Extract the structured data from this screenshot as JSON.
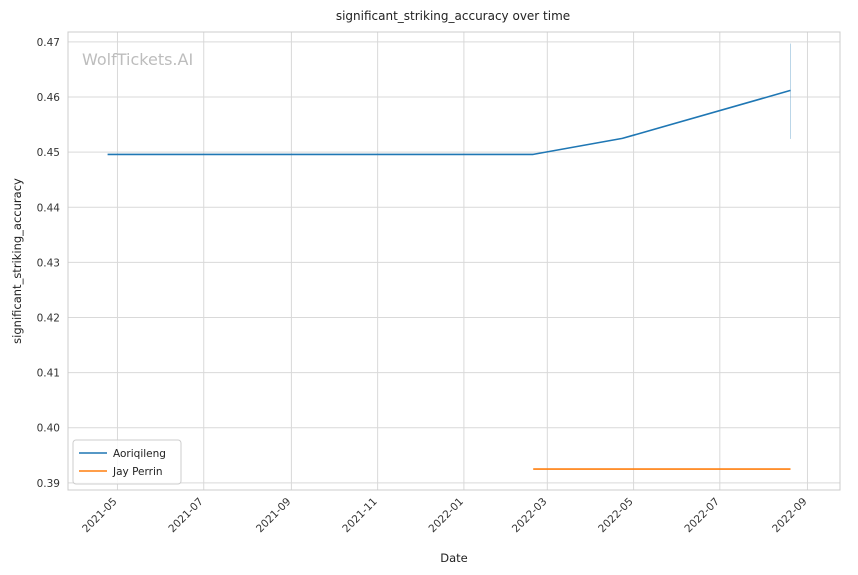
{
  "chart_data": {
    "type": "line",
    "title": "significant_striking_accuracy over time",
    "xlabel": "Date",
    "ylabel": "significant_striking_accuracy",
    "watermark": "WolfTickets.AI",
    "xlim": [
      "2021-03-27",
      "2022-09-24"
    ],
    "ylim": [
      0.3887,
      0.4718
    ],
    "x_ticks": [
      "2021-05",
      "2021-07",
      "2021-09",
      "2021-11",
      "2022-01",
      "2022-03",
      "2022-05",
      "2022-07",
      "2022-09"
    ],
    "y_ticks": [
      0.39,
      0.4,
      0.41,
      0.42,
      0.43,
      0.44,
      0.45,
      0.46,
      0.47
    ],
    "grid": true,
    "legend_position": "lower-left",
    "series": [
      {
        "name": "Aoriqileng",
        "color": "#1f77b4",
        "points": [
          {
            "x": "2021-04-24",
            "y": 0.4496
          },
          {
            "x": "2022-02-19",
            "y": 0.4496
          },
          {
            "x": "2022-04-23",
            "y": 0.4525
          },
          {
            "x": "2022-08-20",
            "y": 0.4612
          }
        ],
        "band": {
          "x": "2022-08-20",
          "low": 0.4524,
          "high": 0.4697
        }
      },
      {
        "name": "Jay Perrin",
        "color": "#ff7f0e",
        "points": [
          {
            "x": "2022-02-19",
            "y": 0.3925
          },
          {
            "x": "2022-08-20",
            "y": 0.3925
          }
        ]
      }
    ]
  }
}
